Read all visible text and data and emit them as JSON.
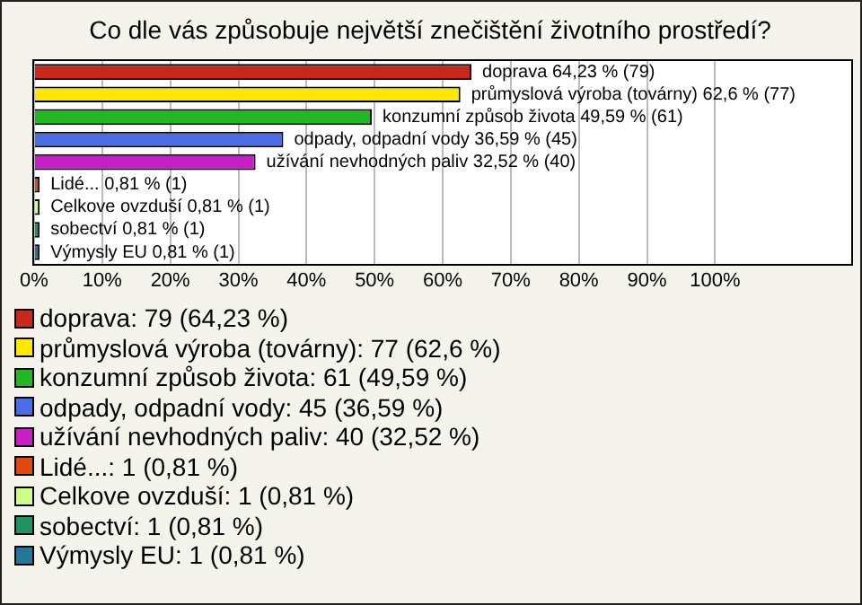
{
  "chart_data": {
    "type": "bar",
    "orientation": "horizontal",
    "stacked": true,
    "title": "Co dle vás způsobuje největší znečištění životního prostředí?",
    "categories": [
      null,
      null,
      null,
      null,
      null,
      null,
      null,
      null,
      null
    ],
    "xlim": [
      0,
      120
    ],
    "xticks": [
      {
        "value": 0,
        "label": "0%"
      },
      {
        "value": 10,
        "label": "10%"
      },
      {
        "value": 20,
        "label": "20%"
      },
      {
        "value": 30,
        "label": "30%"
      },
      {
        "value": 40,
        "label": "40%"
      },
      {
        "value": 50,
        "label": "50%"
      },
      {
        "value": 60,
        "label": "60%"
      },
      {
        "value": 70,
        "label": "70%"
      },
      {
        "value": 80,
        "label": "80%"
      },
      {
        "value": 90,
        "label": "90%"
      },
      {
        "value": 100,
        "label": "100%"
      }
    ],
    "grid": "x",
    "legend": "bottom",
    "series": [
      {
        "name": "doprava: 79 (64,23 %)",
        "color": "#c8281c",
        "values": [
          64.23,
          null,
          null,
          null,
          null,
          null,
          null,
          null,
          null
        ],
        "value_labels": [
          "doprava 64,23 % (79)",
          null,
          null,
          null,
          null,
          null,
          null,
          null,
          null
        ]
      },
      {
        "name": "průmyslová výroba (továrny): 77 (62,6 %)",
        "color": "#ffe800",
        "values": [
          null,
          62.6,
          null,
          null,
          null,
          null,
          null,
          null,
          null
        ],
        "value_labels": [
          null,
          "průmyslová výroba (továrny) 62,6 % (77)",
          null,
          null,
          null,
          null,
          null,
          null,
          null
        ]
      },
      {
        "name": "konzumní způsob života: 61 (49,59 %)",
        "color": "#22b822",
        "values": [
          null,
          null,
          49.59,
          null,
          null,
          null,
          null,
          null,
          null
        ],
        "value_labels": [
          null,
          null,
          "konzumní způsob života 49,59 % (61)",
          null,
          null,
          null,
          null,
          null,
          null
        ]
      },
      {
        "name": "odpady, odpadní vody: 45 (36,59 %)",
        "color": "#4a6ee8",
        "values": [
          null,
          null,
          null,
          36.59,
          null,
          null,
          null,
          null,
          null
        ],
        "value_labels": [
          null,
          null,
          null,
          "odpady, odpadní vody 36,59 % (45)",
          null,
          null,
          null,
          null,
          null
        ]
      },
      {
        "name": "užívání nevhodných paliv: 40 (32,52 %)",
        "color": "#c81ec8",
        "values": [
          null,
          null,
          null,
          null,
          32.52,
          null,
          null,
          null,
          null
        ],
        "value_labels": [
          null,
          null,
          null,
          null,
          "užívání nevhodných paliv 32,52 % (40)",
          null,
          null,
          null,
          null
        ]
      },
      {
        "name": "Lidé...: 1 (0,81 %)",
        "color": "#e04a10",
        "values": [
          null,
          null,
          null,
          null,
          null,
          0.81,
          null,
          null,
          null
        ],
        "value_labels": [
          null,
          null,
          null,
          null,
          null,
          "Lidé... 0,81 % (1)",
          null,
          null,
          null
        ]
      },
      {
        "name": "Celkove ovzduší: 1 (0,81 %)",
        "color": "#ccff88",
        "values": [
          null,
          null,
          null,
          null,
          null,
          null,
          0.81,
          null,
          null
        ],
        "value_labels": [
          null,
          null,
          null,
          null,
          null,
          null,
          "Celkove ovzduší 0,81 % (1)",
          null,
          null
        ]
      },
      {
        "name": "sobectví: 1 (0,81 %)",
        "color": "#209460",
        "values": [
          null,
          null,
          null,
          null,
          null,
          null,
          null,
          0.81,
          null
        ],
        "value_labels": [
          null,
          null,
          null,
          null,
          null,
          null,
          null,
          "sobectví 0,81 % (1)",
          null
        ]
      },
      {
        "name": "Výmysly EU: 1 (0,81 %)",
        "color": "#227896",
        "values": [
          null,
          null,
          null,
          null,
          null,
          null,
          null,
          null,
          0.81
        ],
        "value_labels": [
          null,
          null,
          null,
          null,
          null,
          null,
          null,
          null,
          "Výmysly EU 0,81 % (1)"
        ]
      }
    ]
  }
}
